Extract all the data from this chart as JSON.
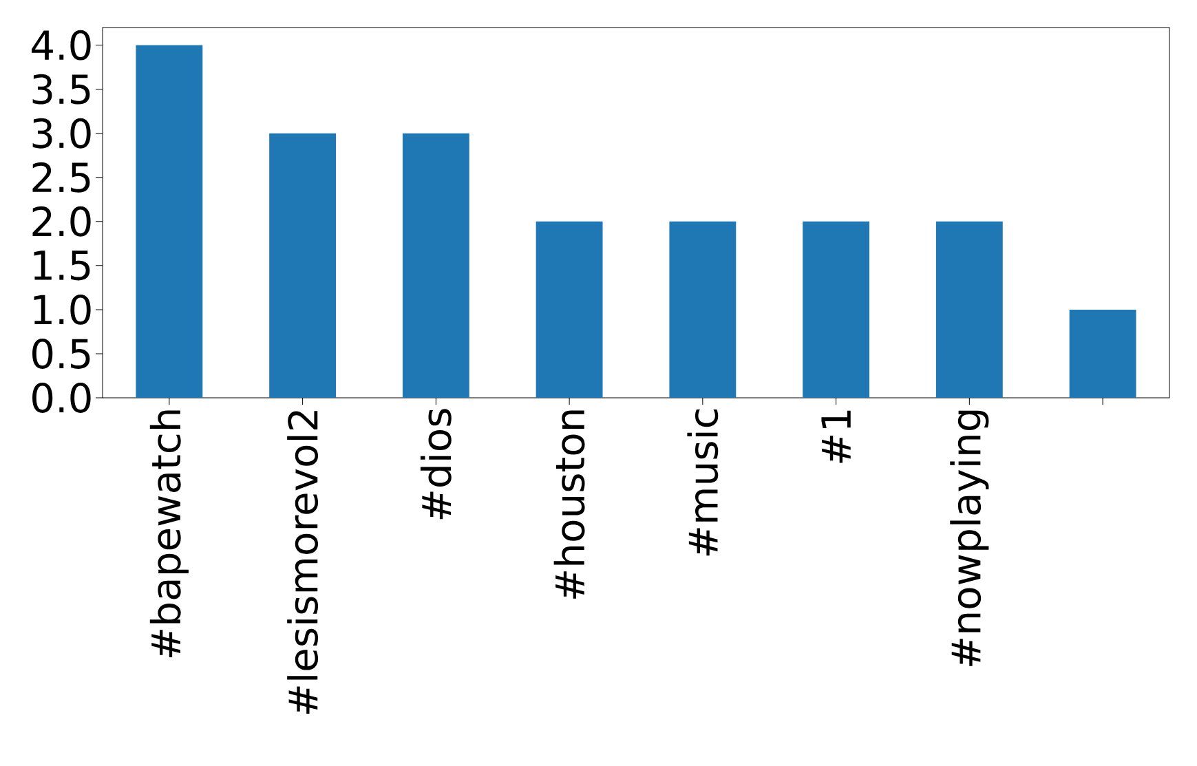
{
  "chart_data": {
    "type": "bar",
    "categories": [
      "#bapewatch",
      "#lesismorevol2",
      "#dios",
      "#houston",
      "#music",
      "#1",
      "#nowplaying",
      null
    ],
    "values": [
      4,
      3,
      3,
      2,
      2,
      2,
      2,
      1
    ],
    "color": "#1f77b4",
    "ylim": [
      0,
      4.2
    ],
    "yticks": [
      {
        "value": 0,
        "label": "0.0"
      },
      {
        "value": 0.5,
        "label": "0.5"
      },
      {
        "value": 1,
        "label": "1.0"
      },
      {
        "value": 1.5,
        "label": "1.5"
      },
      {
        "value": 2,
        "label": "2.0"
      },
      {
        "value": 2.5,
        "label": "2.5"
      },
      {
        "value": 3,
        "label": "3.0"
      },
      {
        "value": 3.5,
        "label": "3.5"
      },
      {
        "value": 4,
        "label": "4.0"
      }
    ]
  }
}
